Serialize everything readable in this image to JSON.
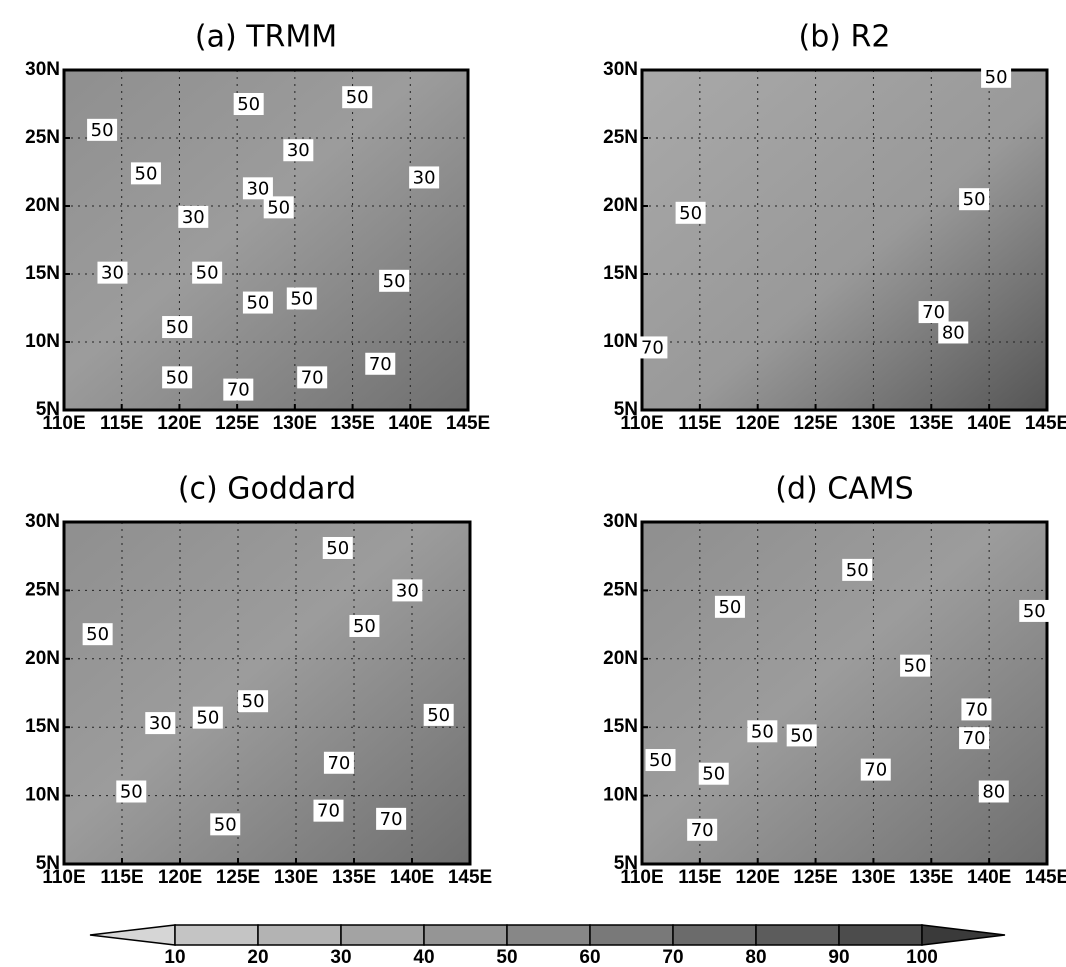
{
  "chart_data": [
    {
      "type": "contour",
      "title": "(a) TRMM",
      "xlim": [
        110,
        145
      ],
      "ylim": [
        5,
        30
      ],
      "xticks": [
        {
          "value": 110,
          "label": "110E"
        },
        {
          "value": 115,
          "label": "115E"
        },
        {
          "value": 120,
          "label": "120E"
        },
        {
          "value": 125,
          "label": "125E"
        },
        {
          "value": 130,
          "label": "130E"
        },
        {
          "value": 135,
          "label": "135E"
        },
        {
          "value": 140,
          "label": "140E"
        },
        {
          "value": 145,
          "label": "145E"
        }
      ],
      "yticks": [
        {
          "value": 5,
          "label": "5N"
        },
        {
          "value": 10,
          "label": "10N"
        },
        {
          "value": 15,
          "label": "15N"
        },
        {
          "value": 20,
          "label": "20N"
        },
        {
          "value": 25,
          "label": "25N"
        },
        {
          "value": 30,
          "label": "30N"
        }
      ],
      "grid": true,
      "contour_labels": [
        {
          "x": 126,
          "y": 27.5,
          "value": 50
        },
        {
          "x": 135.4,
          "y": 28,
          "value": 50
        },
        {
          "x": 113.3,
          "y": 25.6,
          "value": 50
        },
        {
          "x": 117.1,
          "y": 22.4,
          "value": 50
        },
        {
          "x": 130.3,
          "y": 24.1,
          "value": 30
        },
        {
          "x": 141.2,
          "y": 22.1,
          "value": 30
        },
        {
          "x": 126.8,
          "y": 21.3,
          "value": 30
        },
        {
          "x": 128.6,
          "y": 19.9,
          "value": 50
        },
        {
          "x": 121.2,
          "y": 19.2,
          "value": 30
        },
        {
          "x": 114.2,
          "y": 15.1,
          "value": 30
        },
        {
          "x": 122.4,
          "y": 15.1,
          "value": 50
        },
        {
          "x": 126.8,
          "y": 12.9,
          "value": 50
        },
        {
          "x": 130.6,
          "y": 13.2,
          "value": 50
        },
        {
          "x": 138.6,
          "y": 14.5,
          "value": 50
        },
        {
          "x": 119.8,
          "y": 11.1,
          "value": 50
        },
        {
          "x": 119.8,
          "y": 7.4,
          "value": 50
        },
        {
          "x": 125.1,
          "y": 6.5,
          "value": 70
        },
        {
          "x": 131.5,
          "y": 7.4,
          "value": 70
        },
        {
          "x": 137.4,
          "y": 8.4,
          "value": 70
        }
      ]
    },
    {
      "type": "contour",
      "title": "(b) R2",
      "xlim": [
        110,
        145
      ],
      "ylim": [
        5,
        30
      ],
      "xticks": [
        {
          "value": 110,
          "label": "110E"
        },
        {
          "value": 115,
          "label": "115E"
        },
        {
          "value": 120,
          "label": "120E"
        },
        {
          "value": 125,
          "label": "125E"
        },
        {
          "value": 130,
          "label": "130E"
        },
        {
          "value": 135,
          "label": "135E"
        },
        {
          "value": 140,
          "label": "140E"
        },
        {
          "value": 145,
          "label": "145E"
        }
      ],
      "yticks": [
        {
          "value": 5,
          "label": "5N"
        },
        {
          "value": 10,
          "label": "10N"
        },
        {
          "value": 15,
          "label": "15N"
        },
        {
          "value": 20,
          "label": "20N"
        },
        {
          "value": 25,
          "label": "25N"
        },
        {
          "value": 30,
          "label": "30N"
        }
      ],
      "grid": true,
      "contour_labels": [
        {
          "x": 140.6,
          "y": 29.5,
          "value": 50
        },
        {
          "x": 138.7,
          "y": 20.5,
          "value": 50
        },
        {
          "x": 114.2,
          "y": 19.5,
          "value": 50
        },
        {
          "x": 135.2,
          "y": 12.2,
          "value": 70
        },
        {
          "x": 136.9,
          "y": 10.7,
          "value": 80
        },
        {
          "x": 110.9,
          "y": 9.6,
          "value": 70
        }
      ]
    },
    {
      "type": "contour",
      "title": "(c) Goddard",
      "xlim": [
        110,
        145
      ],
      "ylim": [
        5,
        30
      ],
      "xticks": [
        {
          "value": 110,
          "label": "110E"
        },
        {
          "value": 115,
          "label": "115E"
        },
        {
          "value": 120,
          "label": "120E"
        },
        {
          "value": 125,
          "label": "125E"
        },
        {
          "value": 130,
          "label": "130E"
        },
        {
          "value": 135,
          "label": "135E"
        },
        {
          "value": 140,
          "label": "140E"
        },
        {
          "value": 145,
          "label": "145E"
        }
      ],
      "yticks": [
        {
          "value": 5,
          "label": "5N"
        },
        {
          "value": 10,
          "label": "10N"
        },
        {
          "value": 15,
          "label": "15N"
        },
        {
          "value": 20,
          "label": "20N"
        },
        {
          "value": 25,
          "label": "25N"
        },
        {
          "value": 30,
          "label": "30N"
        }
      ],
      "grid": true,
      "contour_labels": [
        {
          "x": 133.6,
          "y": 28.1,
          "value": 50
        },
        {
          "x": 139.6,
          "y": 25,
          "value": 30
        },
        {
          "x": 135.9,
          "y": 22.4,
          "value": 50
        },
        {
          "x": 112.9,
          "y": 21.8,
          "value": 50
        },
        {
          "x": 126.3,
          "y": 16.9,
          "value": 50
        },
        {
          "x": 142.3,
          "y": 15.9,
          "value": 50
        },
        {
          "x": 118.3,
          "y": 15.3,
          "value": 30
        },
        {
          "x": 122.4,
          "y": 15.7,
          "value": 50
        },
        {
          "x": 133.7,
          "y": 12.4,
          "value": 70
        },
        {
          "x": 115.8,
          "y": 10.3,
          "value": 50
        },
        {
          "x": 132.8,
          "y": 8.9,
          "value": 70
        },
        {
          "x": 123.9,
          "y": 7.9,
          "value": 50
        },
        {
          "x": 138.2,
          "y": 8.3,
          "value": 70
        }
      ]
    },
    {
      "type": "contour",
      "title": "(d) CAMS",
      "xlim": [
        110,
        145
      ],
      "ylim": [
        5,
        30
      ],
      "xticks": [
        {
          "value": 110,
          "label": "110E"
        },
        {
          "value": 115,
          "label": "115E"
        },
        {
          "value": 120,
          "label": "120E"
        },
        {
          "value": 125,
          "label": "125E"
        },
        {
          "value": 130,
          "label": "130E"
        },
        {
          "value": 135,
          "label": "135E"
        },
        {
          "value": 140,
          "label": "140E"
        },
        {
          "value": 145,
          "label": "145E"
        }
      ],
      "yticks": [
        {
          "value": 5,
          "label": "5N"
        },
        {
          "value": 10,
          "label": "10N"
        },
        {
          "value": 15,
          "label": "15N"
        },
        {
          "value": 20,
          "label": "20N"
        },
        {
          "value": 25,
          "label": "25N"
        },
        {
          "value": 30,
          "label": "30N"
        }
      ],
      "grid": true,
      "contour_labels": [
        {
          "x": 128.6,
          "y": 26.5,
          "value": 50
        },
        {
          "x": 117.6,
          "y": 23.8,
          "value": 50
        },
        {
          "x": 143.9,
          "y": 23.5,
          "value": 50
        },
        {
          "x": 133.6,
          "y": 19.5,
          "value": 50
        },
        {
          "x": 138.9,
          "y": 16.3,
          "value": 70
        },
        {
          "x": 120.4,
          "y": 14.7,
          "value": 50
        },
        {
          "x": 123.8,
          "y": 14.4,
          "value": 50
        },
        {
          "x": 138.7,
          "y": 14.2,
          "value": 70
        },
        {
          "x": 111.6,
          "y": 12.6,
          "value": 50
        },
        {
          "x": 116.2,
          "y": 11.6,
          "value": 50
        },
        {
          "x": 130.2,
          "y": 11.9,
          "value": 70
        },
        {
          "x": 140.4,
          "y": 10.3,
          "value": 80
        },
        {
          "x": 115.2,
          "y": 7.5,
          "value": 70
        }
      ]
    },
    {
      "type": "colorbar",
      "levels": [
        10,
        20,
        30,
        40,
        50,
        60,
        70,
        80,
        90,
        100
      ],
      "colors": [
        "#d6d6d6",
        "#c4c4c4",
        "#b3b3b3",
        "#a3a3a3",
        "#959595",
        "#878787",
        "#797979",
        "#6b6b6b",
        "#5c5c5c",
        "#4c4c4c",
        "#3a3a3a"
      ]
    }
  ]
}
